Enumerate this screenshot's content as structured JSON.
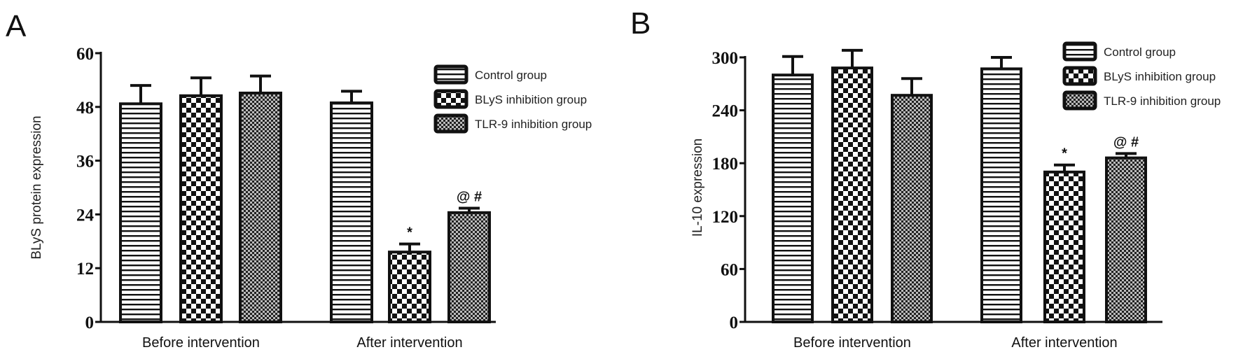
{
  "chart_data": [
    {
      "type": "bar",
      "panel_label": "A",
      "categories": [
        "Before intervention",
        "After intervention"
      ],
      "ylabel": "BLyS protein expression",
      "ylim": [
        0,
        60
      ],
      "yticks": [
        0,
        12,
        24,
        36,
        48,
        60
      ],
      "legend_position": "top-right",
      "grid": false,
      "series": [
        {
          "name": "Control group",
          "pattern": "horizontal-stripes",
          "values": [
            48.7,
            48.9
          ],
          "error": [
            4.1,
            2.6
          ],
          "annotations": [
            "",
            ""
          ]
        },
        {
          "name": "BLyS inhibition group",
          "pattern": "checkerboard",
          "values": [
            50.5,
            15.6
          ],
          "error": [
            4.0,
            1.8
          ],
          "annotations": [
            "",
            "*"
          ]
        },
        {
          "name": "TLR-9 inhibition group",
          "pattern": "fine-checker",
          "values": [
            51.1,
            24.4
          ],
          "error": [
            3.8,
            1.0
          ],
          "annotations": [
            "",
            "@ #"
          ]
        }
      ]
    },
    {
      "type": "bar",
      "panel_label": "B",
      "categories": [
        "Before intervention",
        "After intervention"
      ],
      "ylabel": "IL-10 expression",
      "ylim": [
        0,
        300
      ],
      "yticks": [
        0,
        60,
        120,
        180,
        240,
        300
      ],
      "legend_position": "top-right",
      "grid": false,
      "series": [
        {
          "name": "Control group",
          "pattern": "horizontal-stripes",
          "values": [
            280,
            287
          ],
          "error": [
            21,
            13
          ],
          "annotations": [
            "",
            ""
          ]
        },
        {
          "name": "BLyS inhibition group",
          "pattern": "checkerboard",
          "values": [
            288,
            170
          ],
          "error": [
            20,
            8
          ],
          "annotations": [
            "",
            "*"
          ]
        },
        {
          "name": "TLR-9 inhibition group",
          "pattern": "fine-checker",
          "values": [
            257,
            186
          ],
          "error": [
            19,
            5
          ],
          "annotations": [
            "",
            "@ #"
          ]
        }
      ]
    }
  ],
  "colors": {
    "ink": "#111111",
    "background": "#ffffff"
  }
}
